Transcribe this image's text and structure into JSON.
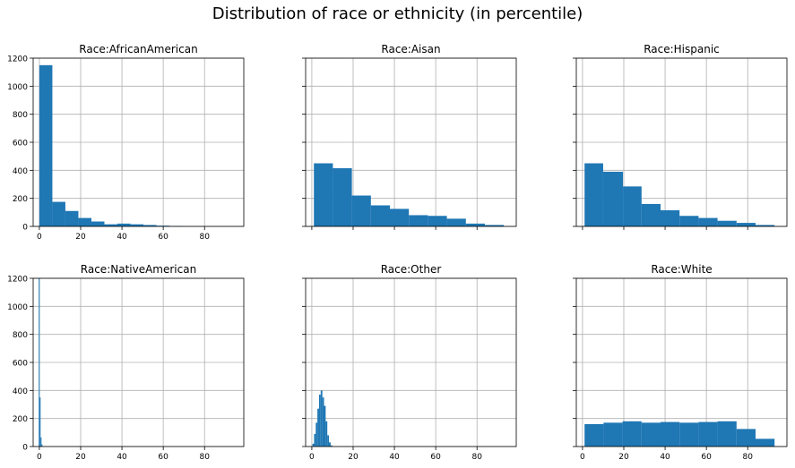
{
  "figure_title": "Distribution of race or ethnicity (in percentile)",
  "colors": {
    "bar": "#1f77b4",
    "grid": "#b0b0b0",
    "axis": "#000000"
  },
  "chart_data": [
    {
      "type": "bar",
      "title": "Race:AfricanAmerican",
      "xlim": [
        -3,
        99
      ],
      "ylim": [
        0,
        1200
      ],
      "xticks": [
        0,
        20,
        40,
        60,
        80
      ],
      "yticks": [
        0,
        200,
        400,
        600,
        800,
        1000,
        1200
      ],
      "grid": true,
      "bins": [
        {
          "x0": 0,
          "x1": 6.3,
          "y": 1150
        },
        {
          "x0": 6.3,
          "x1": 12.6,
          "y": 175
        },
        {
          "x0": 12.6,
          "x1": 18.9,
          "y": 110
        },
        {
          "x0": 18.9,
          "x1": 25.2,
          "y": 60
        },
        {
          "x0": 25.2,
          "x1": 31.5,
          "y": 35
        },
        {
          "x0": 31.5,
          "x1": 37.8,
          "y": 15
        },
        {
          "x0": 37.8,
          "x1": 44.1,
          "y": 20
        },
        {
          "x0": 44.1,
          "x1": 50.4,
          "y": 15
        },
        {
          "x0": 50.4,
          "x1": 56.7,
          "y": 10
        },
        {
          "x0": 56.7,
          "x1": 63,
          "y": 5
        },
        {
          "x0": 63,
          "x1": 69.3,
          "y": 3
        }
      ]
    },
    {
      "type": "bar",
      "title": "Race:Aisan",
      "xlim": [
        -3,
        99
      ],
      "ylim": [
        0,
        1200
      ],
      "xticks": [],
      "yticks": [
        0,
        200,
        400,
        600,
        800,
        1000,
        1200
      ],
      "grid": true,
      "bins": [
        {
          "x0": 1,
          "x1": 10.2,
          "y": 450
        },
        {
          "x0": 10.2,
          "x1": 19.4,
          "y": 415
        },
        {
          "x0": 19.4,
          "x1": 28.6,
          "y": 220
        },
        {
          "x0": 28.6,
          "x1": 37.8,
          "y": 150
        },
        {
          "x0": 37.8,
          "x1": 47,
          "y": 125
        },
        {
          "x0": 47,
          "x1": 56.2,
          "y": 80
        },
        {
          "x0": 56.2,
          "x1": 65.4,
          "y": 75
        },
        {
          "x0": 65.4,
          "x1": 74.6,
          "y": 55
        },
        {
          "x0": 74.6,
          "x1": 83.8,
          "y": 20
        },
        {
          "x0": 83.8,
          "x1": 93,
          "y": 10
        }
      ]
    },
    {
      "type": "bar",
      "title": "Race:Hispanic",
      "xlim": [
        -3,
        99
      ],
      "ylim": [
        0,
        1200
      ],
      "xticks": [],
      "yticks": [
        0,
        200,
        400,
        600,
        800,
        1000,
        1200
      ],
      "grid": true,
      "bins": [
        {
          "x0": 1,
          "x1": 10,
          "y": 450
        },
        {
          "x0": 10,
          "x1": 19.6,
          "y": 390
        },
        {
          "x0": 19.6,
          "x1": 28.6,
          "y": 285
        },
        {
          "x0": 28.6,
          "x1": 37.8,
          "y": 160
        },
        {
          "x0": 37.8,
          "x1": 47,
          "y": 115
        },
        {
          "x0": 47,
          "x1": 56.2,
          "y": 75
        },
        {
          "x0": 56.2,
          "x1": 65.4,
          "y": 60
        },
        {
          "x0": 65.4,
          "x1": 74.6,
          "y": 40
        },
        {
          "x0": 74.6,
          "x1": 83.8,
          "y": 25
        },
        {
          "x0": 83.8,
          "x1": 93,
          "y": 10
        }
      ]
    },
    {
      "type": "bar",
      "title": "Race:NativeAmerican",
      "xlim": [
        -3,
        99
      ],
      "ylim": [
        0,
        1200
      ],
      "xticks": [
        0,
        20,
        40,
        60,
        80
      ],
      "yticks": [
        0,
        200,
        400,
        600,
        800,
        1000,
        1200
      ],
      "grid": true,
      "bins": [
        {
          "x0": -0.3,
          "x1": 0.15,
          "y": 1200
        },
        {
          "x0": 0.15,
          "x1": 0.6,
          "y": 350
        },
        {
          "x0": 0.6,
          "x1": 1.05,
          "y": 65
        },
        {
          "x0": 1.05,
          "x1": 1.5,
          "y": 15
        }
      ]
    },
    {
      "type": "bar",
      "title": "Race:Other",
      "xlim": [
        -3,
        99
      ],
      "ylim": [
        0,
        1200
      ],
      "xticks": [
        0,
        20,
        40,
        60,
        80
      ],
      "yticks": [
        0,
        200,
        400,
        600,
        800,
        1000,
        1200
      ],
      "grid": true,
      "bins": [
        {
          "x0": 0.3,
          "x1": 1.1,
          "y": 20
        },
        {
          "x0": 1.1,
          "x1": 1.9,
          "y": 90
        },
        {
          "x0": 1.9,
          "x1": 2.7,
          "y": 170
        },
        {
          "x0": 2.7,
          "x1": 3.5,
          "y": 270
        },
        {
          "x0": 3.5,
          "x1": 4.3,
          "y": 370
        },
        {
          "x0": 4.3,
          "x1": 5.1,
          "y": 400
        },
        {
          "x0": 5.1,
          "x1": 5.9,
          "y": 350
        },
        {
          "x0": 5.9,
          "x1": 6.7,
          "y": 290
        },
        {
          "x0": 6.7,
          "x1": 7.5,
          "y": 180
        },
        {
          "x0": 7.5,
          "x1": 8.3,
          "y": 80
        },
        {
          "x0": 8.3,
          "x1": 9.1,
          "y": 30
        },
        {
          "x0": 9.1,
          "x1": 9.9,
          "y": 8
        }
      ]
    },
    {
      "type": "bar",
      "title": "Race:White",
      "xlim": [
        -3,
        99
      ],
      "ylim": [
        0,
        1200
      ],
      "xticks": [
        0,
        20,
        40,
        60,
        80
      ],
      "yticks": [
        0,
        200,
        400,
        600,
        800,
        1000,
        1200
      ],
      "grid": true,
      "bins": [
        {
          "x0": 1,
          "x1": 10.2,
          "y": 160
        },
        {
          "x0": 10.2,
          "x1": 19.4,
          "y": 170
        },
        {
          "x0": 19.4,
          "x1": 28.6,
          "y": 180
        },
        {
          "x0": 28.6,
          "x1": 37.8,
          "y": 170
        },
        {
          "x0": 37.8,
          "x1": 47,
          "y": 175
        },
        {
          "x0": 47,
          "x1": 56.2,
          "y": 170
        },
        {
          "x0": 56.2,
          "x1": 65.4,
          "y": 175
        },
        {
          "x0": 65.4,
          "x1": 74.6,
          "y": 180
        },
        {
          "x0": 74.6,
          "x1": 83.8,
          "y": 125
        },
        {
          "x0": 83.8,
          "x1": 93,
          "y": 55
        }
      ]
    }
  ]
}
